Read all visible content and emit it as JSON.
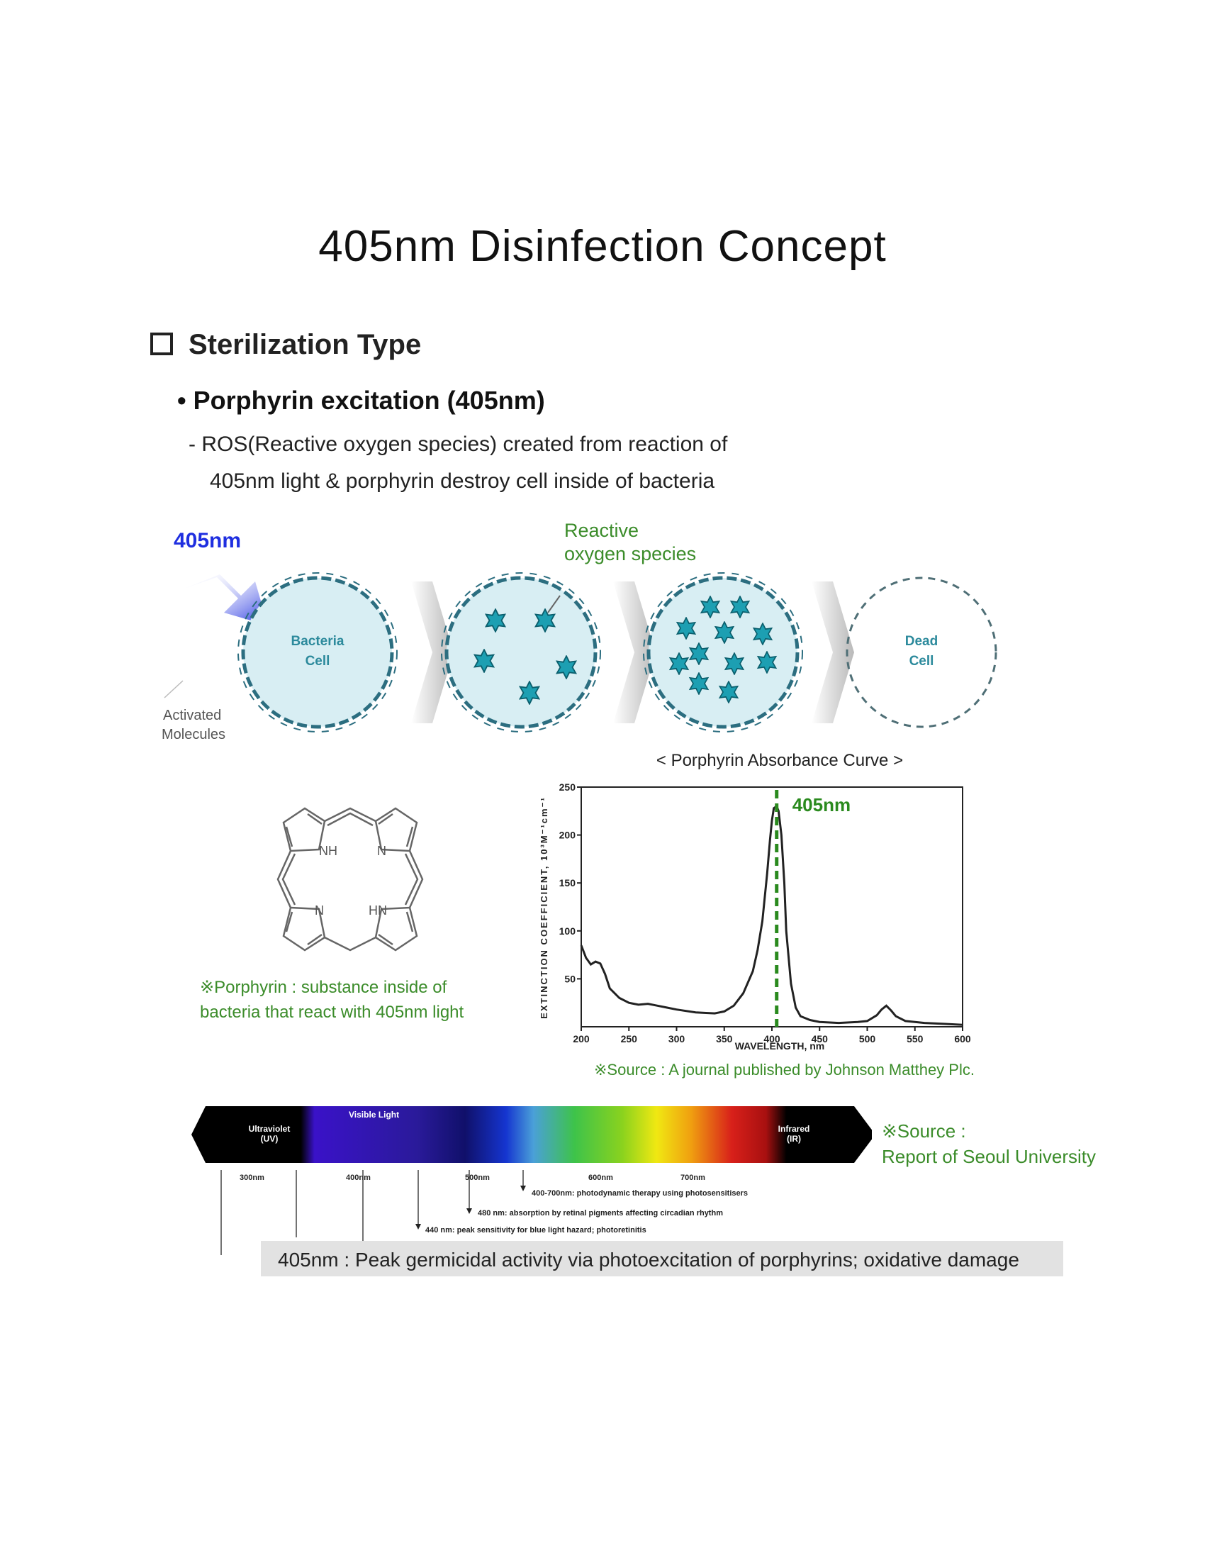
{
  "page": {
    "title": "405nm Disinfection Concept"
  },
  "section": {
    "heading": "Sterilization Type",
    "bullet": "• Porphyrin excitation (405nm)",
    "desc_line1": "- ROS(Reactive oxygen species) created from reaction of",
    "desc_line2": "405nm light & porphyrin destroy cell inside of bacteria"
  },
  "cells": {
    "light_label": "405nm",
    "ros_label_line1": "Reactive",
    "ros_label_line2": "oxygen species",
    "bacteria_label_line1": "Bacteria",
    "bacteria_label_line2": "Cell",
    "dead_label_line1": "Dead",
    "dead_label_line2": "Cell",
    "activated_line1": "Activated",
    "activated_line2": "Molecules"
  },
  "molecule": {
    "nh_top": "NH",
    "n_top": "N",
    "n_bottom": "N",
    "hn_bottom": "HN",
    "note_line1": "※Porphyrin : substance inside of",
    "note_line2": "bacteria that react with 405nm light"
  },
  "chart_data": {
    "type": "line",
    "title": "< Porphyrin Absorbance Curve >",
    "xlabel": "WAVELENGTH, nm",
    "ylabel": "EXTINCTION COEFFICIENT, 10³M⁻¹cm⁻¹",
    "xlim": [
      200,
      600
    ],
    "ylim": [
      0,
      250
    ],
    "x_ticks": [
      "200",
      "250",
      "300",
      "350",
      "400",
      "450",
      "500",
      "550",
      "600"
    ],
    "y_ticks": [
      "50",
      "100",
      "150",
      "200",
      "250"
    ],
    "marker_label": "405nm",
    "marker_x": 405,
    "marker_color": "#2a8a1e",
    "x": [
      200,
      205,
      210,
      215,
      220,
      225,
      230,
      240,
      250,
      260,
      270,
      280,
      290,
      300,
      320,
      340,
      350,
      360,
      370,
      380,
      385,
      390,
      395,
      398,
      400,
      402,
      405,
      407,
      410,
      413,
      415,
      420,
      425,
      430,
      440,
      450,
      470,
      490,
      500,
      510,
      515,
      520,
      525,
      530,
      540,
      560,
      580,
      600
    ],
    "y": [
      85,
      72,
      65,
      68,
      66,
      55,
      40,
      30,
      25,
      23,
      24,
      22,
      20,
      18,
      15,
      14,
      16,
      22,
      35,
      58,
      80,
      110,
      160,
      195,
      215,
      228,
      230,
      225,
      200,
      150,
      100,
      45,
      20,
      11,
      7,
      5,
      4,
      5,
      6,
      12,
      18,
      22,
      17,
      11,
      6,
      4,
      3,
      2
    ]
  },
  "chart_source": "※Source : A journal published by Johnson Matthey Plc.",
  "spectrum": {
    "uv_label_line1": "Ultraviolet",
    "uv_label_line2": "(UV)",
    "visible_label": "Visible Light",
    "ir_label_line1": "Infrared",
    "ir_label_line2": "(IR)",
    "ticks": [
      "300nm",
      "400nm",
      "500nm",
      "600nm",
      "700nm"
    ],
    "ann1_bold": "400-700nm:",
    "ann1_text": "photodynamic therapy using photosensitisers",
    "ann2_bold": "480 nm:",
    "ann2_text": "absorption by retinal pigments affecting circadian rhythm",
    "ann3_bold": "440 nm:",
    "ann3_text": "peak sensitivity for blue light hazard;  photoretinitis",
    "source_line1": "※Source :",
    "source_line2": "Report of Seoul University",
    "peak_text": "405nm : Peak germicidal activity via photoexcitation of porphyrins; oxidative damage"
  },
  "colors": {
    "light_blue": "#1f2fe0",
    "ros_green": "#3b8c2a",
    "cell_fill": "#d8eef3",
    "cell_stroke": "#2c6e80",
    "ros_star": "#1d9fb2"
  }
}
